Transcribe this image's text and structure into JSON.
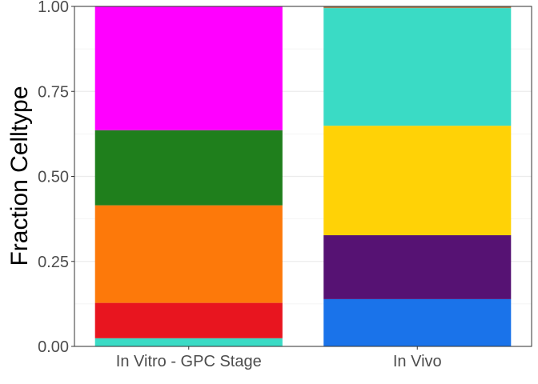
{
  "chart_data": {
    "type": "bar",
    "stacked": true,
    "title": "",
    "xlabel": "",
    "ylabel": "Fraction Celltype",
    "ylim": [
      0,
      1
    ],
    "yticks": [
      "0.00",
      "0.25",
      "0.50",
      "0.75",
      "1.00"
    ],
    "ytick_values": [
      0,
      0.25,
      0.5,
      0.75,
      1
    ],
    "categories": [
      "In Vitro - GPC Stage",
      "In Vivo"
    ],
    "grid": true,
    "legend": "none",
    "bars": [
      {
        "category": "In Vitro - GPC Stage",
        "segments": [
          {
            "value": 0.024,
            "color": "#3ADBC5"
          },
          {
            "value": 0.104,
            "color": "#E8151F"
          },
          {
            "value": 0.287,
            "color": "#FD790A"
          },
          {
            "value": 0.221,
            "color": "#1F7F1C"
          },
          {
            "value": 0.364,
            "color": "#FF00FF"
          }
        ]
      },
      {
        "category": "In Vivo",
        "segments": [
          {
            "value": 0.139,
            "color": "#1A73EA"
          },
          {
            "value": 0.188,
            "color": "#561273"
          },
          {
            "value": 0.322,
            "color": "#FFD206"
          },
          {
            "value": 0.346,
            "color": "#3ADBC5"
          },
          {
            "value": 0.005,
            "color": "#A87C4E"
          }
        ]
      }
    ]
  }
}
